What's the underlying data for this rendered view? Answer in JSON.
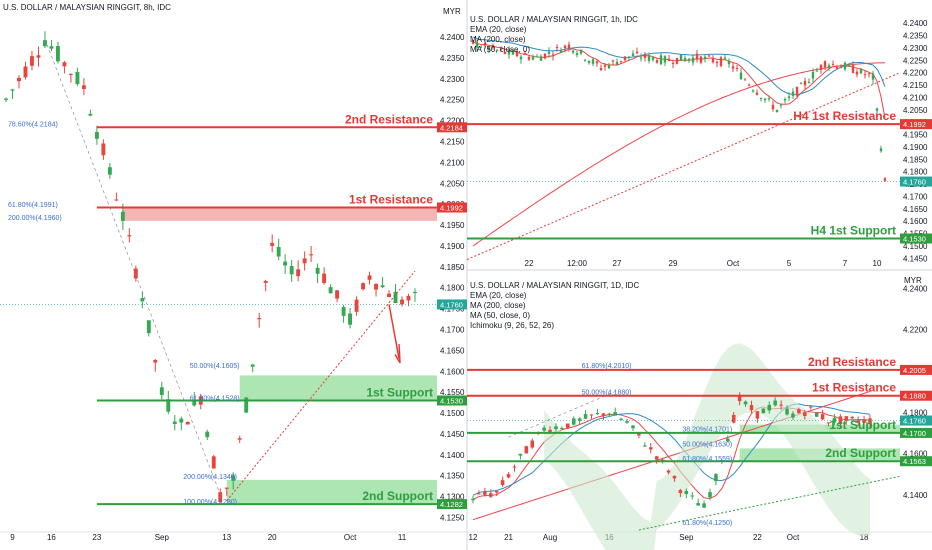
{
  "colors": {
    "red": "#e53935",
    "green": "#2e9e3e",
    "green_zone": "#9fe0a6",
    "red_zone": "#f4a8a8",
    "ema": "#f0444a",
    "ma200": "#2e8bc9",
    "fib_text": "#3a6fd1",
    "bull": "#34a853",
    "bear": "#e8453c",
    "axis_bg": "#131722",
    "ichimoku": "#cfe9cf",
    "trend_red": "#e53935",
    "trend_green": "#2e9e3e"
  },
  "chart_data": [
    {
      "id": "p8h",
      "type": "candlestick",
      "title": "U.S. DOLLAR / MALAYSIAN RINGGIT, 8h, IDC",
      "ylim": [
        4.122,
        4.246
      ],
      "yticks": [
        "4.2400",
        "4.2350",
        "4.2300",
        "4.2250",
        "4.2200",
        "4.2150",
        "4.2100",
        "4.2050",
        "4.2000",
        "4.1950",
        "4.1900",
        "4.1850",
        "4.1800",
        "4.1750",
        "4.1700",
        "4.1650",
        "4.1600",
        "4.1550",
        "4.1500",
        "4.1450",
        "4.1400",
        "4.1350",
        "4.1300",
        "4.1250"
      ],
      "xticks": [
        {
          "i": 1,
          "l": "9"
        },
        {
          "i": 7,
          "l": "16"
        },
        {
          "i": 14,
          "l": "23"
        },
        {
          "i": 24,
          "l": "Sep"
        },
        {
          "i": 34,
          "l": "13"
        },
        {
          "i": 41,
          "l": "20"
        },
        {
          "i": 53,
          "l": "Oct"
        },
        {
          "i": 61,
          "l": "11"
        }
      ],
      "n": 64,
      "price_path": [
        [
          0,
          4.225
        ],
        [
          6,
          4.2395
        ],
        [
          12,
          4.228
        ],
        [
          18,
          4.197
        ],
        [
          21,
          4.178
        ],
        [
          24,
          4.1545
        ],
        [
          27,
          4.147
        ],
        [
          30,
          4.154
        ],
        [
          33,
          4.1305
        ],
        [
          35,
          4.134
        ],
        [
          37,
          4.152
        ],
        [
          39,
          4.173
        ],
        [
          41,
          4.19
        ],
        [
          44,
          4.183
        ],
        [
          47,
          4.188
        ],
        [
          50,
          4.18
        ],
        [
          53,
          4.172
        ],
        [
          56,
          4.183
        ],
        [
          59,
          4.179
        ],
        [
          61,
          4.177
        ]
      ],
      "levels": [
        {
          "v": 4.2184,
          "color": "red",
          "label": "2nd Resistance",
          "tag": "4.2184"
        },
        {
          "v": 4.1992,
          "color": "red",
          "label": "1st Resistance",
          "tag": "4.1992"
        },
        {
          "v": 4.153,
          "color": "green",
          "label": "1st Support",
          "tag": "4.1530"
        },
        {
          "v": 4.1282,
          "color": "green",
          "label": "2nd Support",
          "tag": "4.1282"
        }
      ],
      "zones": [
        {
          "from": 4.196,
          "to": 4.1992,
          "color": "red_zone",
          "x0": 18
        },
        {
          "from": 4.153,
          "to": 4.159,
          "color": "green_zone",
          "x0": 36
        },
        {
          "from": 4.1282,
          "to": 4.134,
          "color": "green_zone",
          "x0": 34
        }
      ],
      "fib_labels": [
        {
          "v": 4.2184,
          "x": 0,
          "t": "78.60%(4.2184)"
        },
        {
          "v": 4.1991,
          "x": 0,
          "t": "61.80%(4.1991)"
        },
        {
          "v": 4.196,
          "x": 0,
          "t": "200.00%(4.1960)"
        },
        {
          "v": 4.1605,
          "x": 28,
          "t": "50.00%(4.1605)"
        },
        {
          "v": 4.1528,
          "x": 28,
          "t": "61.80%(4.1528)"
        },
        {
          "v": 4.134,
          "x": 27,
          "t": "200.00%(4.1340)"
        },
        {
          "v": 4.128,
          "x": 27,
          "t": "100.00%(4.1280)"
        }
      ],
      "current": {
        "v": 4.176,
        "tag": "4.1760"
      }
    },
    {
      "id": "p1h",
      "type": "candlestick",
      "title": "U.S. DOLLAR / MALAYSIAN RINGGIT, 1h, IDC",
      "indicators": [
        "EMA (20, close)",
        "MA (200, close)",
        "MA (50, close, 0)"
      ],
      "currency": "MYR",
      "ylim": [
        4.1435,
        4.2445
      ],
      "yticks": [
        "4.2400",
        "4.2350",
        "4.2300",
        "4.2250",
        "4.2200",
        "4.2150",
        "4.2100",
        "4.2050",
        "4.2000",
        "4.1950",
        "4.1900",
        "4.1850",
        "4.1800",
        "4.1750",
        "4.1700",
        "4.1650",
        "4.1600",
        "4.1550",
        "4.1500",
        "4.1450"
      ],
      "xticks": [
        {
          "i": 14,
          "l": "22"
        },
        {
          "i": 26,
          "l": "12:00"
        },
        {
          "i": 36,
          "l": "27"
        },
        {
          "i": 50,
          "l": "29"
        },
        {
          "i": 65,
          "l": "Oct"
        },
        {
          "i": 79,
          "l": "5"
        },
        {
          "i": 93,
          "l": "7"
        },
        {
          "i": 101,
          "l": "10"
        }
      ],
      "n": 104,
      "price_path": [
        [
          0,
          4.232
        ],
        [
          8,
          4.228
        ],
        [
          16,
          4.226
        ],
        [
          24,
          4.231
        ],
        [
          32,
          4.222
        ],
        [
          40,
          4.227
        ],
        [
          48,
          4.225
        ],
        [
          56,
          4.226
        ],
        [
          64,
          4.224
        ],
        [
          70,
          4.214
        ],
        [
          76,
          4.205
        ],
        [
          82,
          4.214
        ],
        [
          88,
          4.224
        ],
        [
          94,
          4.222
        ],
        [
          100,
          4.218
        ],
        [
          103,
          4.176
        ]
      ],
      "levels": [
        {
          "v": 4.1992,
          "color": "red",
          "label": "H4 1st Resistance",
          "tag": "4.1992"
        },
        {
          "v": 4.153,
          "color": "green",
          "label": "H4 1st Support",
          "tag": "4.1530"
        }
      ],
      "current": {
        "v": 4.176,
        "tag": "4.1760"
      }
    },
    {
      "id": "p1d",
      "type": "candlestick",
      "title": "U.S. DOLLAR / MALAYSIAN RINGGIT, 1D, IDC",
      "indicators": [
        "EMA (20, close)",
        "MA (200, close)",
        "MA (50, close, 0)",
        "Ichimoku (9, 26, 52, 26)"
      ],
      "currency": "MYR",
      "ylim": [
        4.123,
        4.245
      ],
      "yticks": [
        "4.2400",
        "4.2200",
        "4.2000",
        "4.1800",
        "4.1600",
        "4.1400"
      ],
      "xticks": [
        {
          "i": 0,
          "l": "12"
        },
        {
          "i": 6,
          "l": "21"
        },
        {
          "i": 13,
          "l": "Aug"
        },
        {
          "i": 23,
          "l": "16"
        },
        {
          "i": 36,
          "l": "Sep"
        },
        {
          "i": 48,
          "l": "22"
        },
        {
          "i": 54,
          "l": "Oct"
        },
        {
          "i": 66,
          "l": "18"
        }
      ],
      "n": 68,
      "price_path": [
        [
          0,
          4.139
        ],
        [
          4,
          4.141
        ],
        [
          8,
          4.158
        ],
        [
          12,
          4.172
        ],
        [
          16,
          4.174
        ],
        [
          20,
          4.178
        ],
        [
          23,
          4.18
        ],
        [
          26,
          4.175
        ],
        [
          29,
          4.165
        ],
        [
          31,
          4.159
        ],
        [
          33,
          4.152
        ],
        [
          35,
          4.143
        ],
        [
          37,
          4.138
        ],
        [
          39,
          4.134
        ],
        [
          41,
          4.148
        ],
        [
          43,
          4.168
        ],
        [
          45,
          4.186
        ],
        [
          48,
          4.179
        ],
        [
          51,
          4.184
        ],
        [
          54,
          4.179
        ],
        [
          57,
          4.181
        ],
        [
          60,
          4.176
        ]
      ],
      "levels": [
        {
          "v": 4.2005,
          "color": "red",
          "label": "2nd Resistance",
          "tag": "4.2005"
        },
        {
          "v": 4.188,
          "color": "red",
          "label": "1st Resistance",
          "tag": "4.1880"
        },
        {
          "v": 4.17,
          "color": "green",
          "label": "1st Support",
          "tag": "4.1700"
        },
        {
          "v": 4.1563,
          "color": "green",
          "label": "2nd Support",
          "tag": "4.1563"
        }
      ],
      "zones": [
        {
          "from": 4.17,
          "to": 4.174,
          "color": "green_zone",
          "x0": 45
        },
        {
          "from": 4.1563,
          "to": 4.1625,
          "color": "green_zone",
          "x0": 45
        }
      ],
      "fib_labels": [
        {
          "v": 4.201,
          "x": 18,
          "t": "61.80%(4.2010)"
        },
        {
          "v": 4.188,
          "x": 18,
          "t": "50.00%(4.1880)"
        },
        {
          "v": 4.1701,
          "x": 35,
          "t": "38.20%(4.1701)"
        },
        {
          "v": 4.163,
          "x": 35,
          "t": "50.00%(4.1630)"
        },
        {
          "v": 4.1559,
          "x": 35,
          "t": "61.80%(4.1559)"
        },
        {
          "v": 4.125,
          "x": 35,
          "t": "61.80%(4.1250)"
        }
      ],
      "current": {
        "v": 4.176,
        "tag": "4.1760"
      }
    }
  ]
}
